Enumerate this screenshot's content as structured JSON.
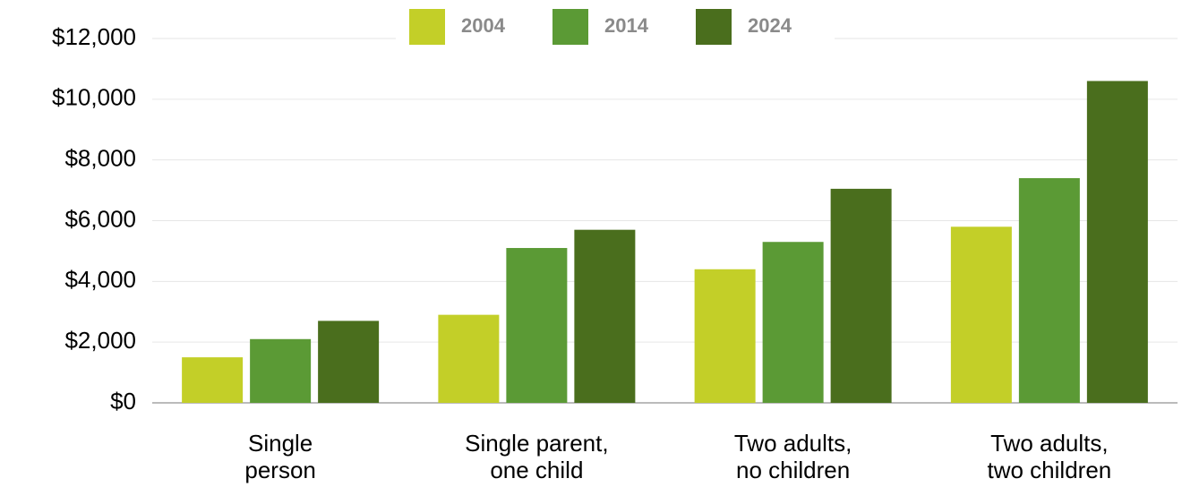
{
  "chart_data": {
    "type": "bar",
    "categories": [
      [
        "Single",
        "person"
      ],
      [
        "Single parent,",
        "one child"
      ],
      [
        "Two adults,",
        "no children"
      ],
      [
        "Two adults,",
        "two children"
      ]
    ],
    "series": [
      {
        "name": "2004",
        "color": "#c3cf28",
        "values": [
          1500,
          2900,
          4400,
          5800
        ]
      },
      {
        "name": "2014",
        "color": "#5b9a35",
        "values": [
          2100,
          5100,
          5300,
          7400
        ]
      },
      {
        "name": "2024",
        "color": "#4a6e1d",
        "values": [
          2700,
          5700,
          7050,
          10600
        ]
      }
    ],
    "ylim": [
      0,
      12000
    ],
    "yticks": [
      {
        "value": 0,
        "label": "$0"
      },
      {
        "value": 2000,
        "label": "$2,000"
      },
      {
        "value": 4000,
        "label": "$4,000"
      },
      {
        "value": 6000,
        "label": "$6,000"
      },
      {
        "value": 8000,
        "label": "$8,000"
      },
      {
        "value": 10000,
        "label": "$10,000"
      },
      {
        "value": 12000,
        "label": "$12,000"
      }
    ],
    "grid": true,
    "legend": "top"
  }
}
